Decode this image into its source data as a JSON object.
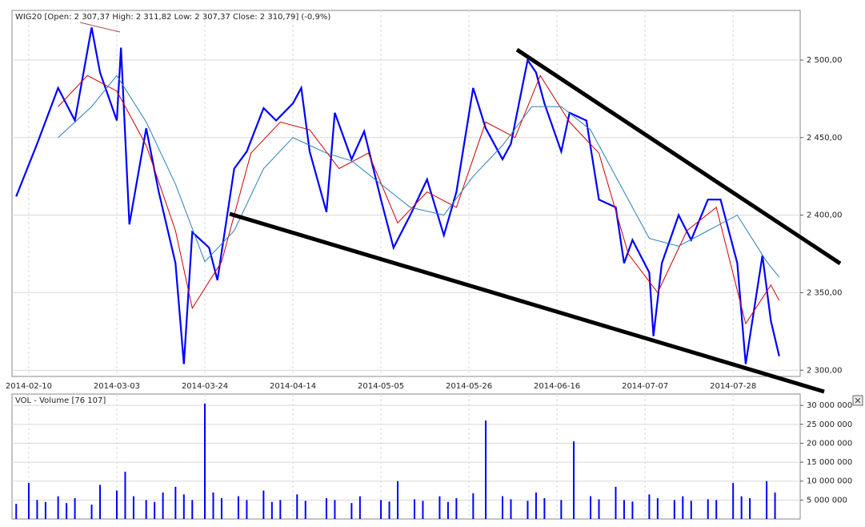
{
  "chart_data": [
    {
      "type": "line",
      "title": "WIG20 [Open: 2 307,37  High: 2 311,82  Low: 2 307,37  Close: 2 310,79] (-0,9%)",
      "xlim": [
        "2014-02-06",
        "2014-08-13"
      ],
      "xticks": [
        "2014-02-10",
        "2014-03-03",
        "2014-03-24",
        "2014-04-14",
        "2014-05-05",
        "2014-05-26",
        "2014-06-16",
        "2014-07-07",
        "2014-07-28"
      ],
      "ylim": [
        2296,
        2532
      ],
      "yticks": [
        {
          "value": 2300,
          "label": "2 300,00"
        },
        {
          "value": 2350,
          "label": "2 350,00"
        },
        {
          "value": 2400,
          "label": "2 400,00"
        },
        {
          "value": 2450,
          "label": "2 450,00"
        },
        {
          "value": 2500,
          "label": "2 500,00"
        }
      ],
      "grid": true,
      "series": [
        {
          "name": "WIG20",
          "color": "#0000ff",
          "x": [
            "2014-02-07",
            "2014-02-12",
            "2014-02-17",
            "2014-02-21",
            "2014-02-25",
            "2014-02-27",
            "2014-03-03",
            "2014-03-04",
            "2014-03-06",
            "2014-03-10",
            "2014-03-13",
            "2014-03-17",
            "2014-03-19",
            "2014-03-21",
            "2014-03-25",
            "2014-03-27",
            "2014-03-31",
            "2014-04-03",
            "2014-04-07",
            "2014-04-10",
            "2014-04-14",
            "2014-04-16",
            "2014-04-18",
            "2014-04-22",
            "2014-04-24",
            "2014-04-28",
            "2014-05-01",
            "2014-05-05",
            "2014-05-08",
            "2014-05-12",
            "2014-05-16",
            "2014-05-20",
            "2014-05-23",
            "2014-05-27",
            "2014-05-30",
            "2014-06-03",
            "2014-06-05",
            "2014-06-09",
            "2014-06-11",
            "2014-06-13",
            "2014-06-17",
            "2014-06-19",
            "2014-06-23",
            "2014-06-26",
            "2014-06-30",
            "2014-07-02",
            "2014-07-04",
            "2014-07-08",
            "2014-07-09",
            "2014-07-11",
            "2014-07-15",
            "2014-07-18",
            "2014-07-22",
            "2014-07-25",
            "2014-07-29",
            "2014-07-31",
            "2014-08-04",
            "2014-08-06",
            "2014-08-08"
          ],
          "values": [
            2412,
            2446,
            2482,
            2461,
            2521,
            2492,
            2461,
            2508,
            2394,
            2456,
            2415,
            2369,
            2304,
            2389,
            2379,
            2358,
            2430,
            2441,
            2469,
            2461,
            2472,
            2482,
            2441,
            2402,
            2466,
            2436,
            2454,
            2410,
            2379,
            2400,
            2423,
            2387,
            2415,
            2482,
            2456,
            2436,
            2446,
            2500,
            2492,
            2472,
            2441,
            2466,
            2461,
            2410,
            2405,
            2369,
            2384,
            2363,
            2322,
            2369,
            2400,
            2384,
            2410,
            2410,
            2369,
            2304,
            2374,
            2332,
            2309
          ]
        },
        {
          "color": "#cc0000",
          "x": [
            "2014-02-17",
            "2014-02-24",
            "2014-03-03",
            "2014-03-10",
            "2014-03-17",
            "2014-03-21",
            "2014-03-28",
            "2014-04-04",
            "2014-04-11",
            "2014-04-18",
            "2014-04-25",
            "2014-05-02",
            "2014-05-09",
            "2014-05-16",
            "2014-05-23",
            "2014-05-30",
            "2014-06-06",
            "2014-06-12",
            "2014-06-19",
            "2014-06-26",
            "2014-07-03",
            "2014-07-10",
            "2014-07-17",
            "2014-07-24",
            "2014-07-31",
            "2014-08-06",
            "2014-08-08"
          ],
          "values": [
            2470,
            2490,
            2480,
            2445,
            2390,
            2340,
            2370,
            2440,
            2460,
            2455,
            2430,
            2440,
            2395,
            2415,
            2405,
            2460,
            2450,
            2490,
            2460,
            2440,
            2375,
            2350,
            2390,
            2405,
            2330,
            2355,
            2345
          ]
        },
        {
          "color": "#2a7fb8",
          "x": [
            "2014-02-17",
            "2014-02-25",
            "2014-03-03",
            "2014-03-10",
            "2014-03-17",
            "2014-03-24",
            "2014-03-31",
            "2014-04-07",
            "2014-04-14",
            "2014-04-22",
            "2014-04-28",
            "2014-05-05",
            "2014-05-12",
            "2014-05-20",
            "2014-05-27",
            "2014-06-03",
            "2014-06-10",
            "2014-06-17",
            "2014-06-24",
            "2014-07-01",
            "2014-07-08",
            "2014-07-15",
            "2014-07-22",
            "2014-07-29",
            "2014-08-05",
            "2014-08-08"
          ],
          "values": [
            2450,
            2470,
            2490,
            2460,
            2420,
            2370,
            2390,
            2430,
            2450,
            2440,
            2435,
            2420,
            2405,
            2400,
            2425,
            2445,
            2470,
            2470,
            2455,
            2420,
            2385,
            2380,
            2390,
            2400,
            2370,
            2360
          ]
        }
      ]
    },
    {
      "type": "bar",
      "title": "VOL - Volume [76 107]",
      "xlim": [
        "2014-02-06",
        "2014-08-13"
      ],
      "ylim": [
        0,
        33000000
      ],
      "yticks": [
        {
          "value": 5000000,
          "label": "5 000 000"
        },
        {
          "value": 10000000,
          "label": "10 000 000"
        },
        {
          "value": 15000000,
          "label": "15 000 000"
        },
        {
          "value": 20000000,
          "label": "20 000 000"
        },
        {
          "value": 25000000,
          "label": "25 000 000"
        },
        {
          "value": 30000000,
          "label": "30 000 000"
        }
      ],
      "grid": true,
      "color": "#0000ff",
      "x": [
        "2014-02-07",
        "2014-02-10",
        "2014-02-12",
        "2014-02-14",
        "2014-02-17",
        "2014-02-19",
        "2014-02-21",
        "2014-02-25",
        "2014-02-27",
        "2014-03-03",
        "2014-03-05",
        "2014-03-07",
        "2014-03-10",
        "2014-03-12",
        "2014-03-14",
        "2014-03-17",
        "2014-03-19",
        "2014-03-21",
        "2014-03-24",
        "2014-03-26",
        "2014-03-28",
        "2014-04-01",
        "2014-04-03",
        "2014-04-07",
        "2014-04-09",
        "2014-04-11",
        "2014-04-15",
        "2014-04-17",
        "2014-04-22",
        "2014-04-24",
        "2014-04-28",
        "2014-04-30",
        "2014-05-05",
        "2014-05-07",
        "2014-05-09",
        "2014-05-13",
        "2014-05-15",
        "2014-05-19",
        "2014-05-21",
        "2014-05-23",
        "2014-05-27",
        "2014-05-30",
        "2014-06-03",
        "2014-06-05",
        "2014-06-09",
        "2014-06-11",
        "2014-06-13",
        "2014-06-17",
        "2014-06-20",
        "2014-06-24",
        "2014-06-26",
        "2014-06-30",
        "2014-07-02",
        "2014-07-04",
        "2014-07-08",
        "2014-07-10",
        "2014-07-14",
        "2014-07-16",
        "2014-07-18",
        "2014-07-22",
        "2014-07-24",
        "2014-07-28",
        "2014-07-30",
        "2014-08-01",
        "2014-08-05",
        "2014-08-07"
      ],
      "values": [
        4000000,
        9500000,
        5000000,
        4500000,
        6000000,
        4200000,
        5500000,
        3800000,
        9000000,
        7500000,
        12500000,
        6000000,
        5000000,
        4500000,
        7000000,
        8500000,
        6500000,
        5000000,
        30500000,
        7000000,
        5500000,
        6000000,
        5000000,
        7500000,
        4500000,
        5000000,
        6500000,
        4800000,
        5500000,
        5000000,
        4200000,
        6000000,
        5000000,
        4600000,
        10000000,
        5200000,
        4800000,
        6000000,
        4500000,
        5500000,
        6800000,
        26000000,
        6000000,
        5200000,
        4800000,
        7000000,
        5500000,
        5000000,
        20500000,
        6000000,
        5200000,
        8500000,
        5000000,
        4600000,
        6500000,
        5500000,
        5000000,
        6000000,
        4800000,
        5200000,
        5000000,
        9500000,
        6000000,
        5500000,
        10000000,
        7000000
      ]
    }
  ]
}
